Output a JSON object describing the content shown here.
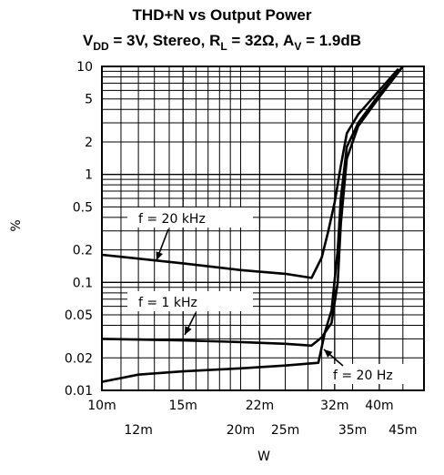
{
  "chart_data": {
    "type": "line",
    "title": "THD+N vs Output Power",
    "subtitle": {
      "vdd": "V",
      "vdd_sub": "DD",
      "vdd_rest": " = 3V, Stereo, R",
      "rl_sub": "L",
      "rl_rest": " = 32Ω, A",
      "av_sub": "V",
      "av_rest": " = 1.9dB"
    },
    "xlabel": "W",
    "ylabel": "%",
    "x_scale": "log",
    "y_scale": "log",
    "xlim": [
      0.01,
      0.05
    ],
    "ylim": [
      0.01,
      10
    ],
    "x_ticks_top": [
      {
        "value": 0.01,
        "label": "10m"
      },
      {
        "value": 0.015,
        "label": "15m"
      },
      {
        "value": 0.022,
        "label": "22m"
      },
      {
        "value": 0.032,
        "label": "32m"
      },
      {
        "value": 0.04,
        "label": "40m"
      }
    ],
    "x_ticks_bottom": [
      {
        "value": 0.012,
        "label": "12m"
      },
      {
        "value": 0.02,
        "label": "20m"
      },
      {
        "value": 0.025,
        "label": "25m"
      },
      {
        "value": 0.035,
        "label": "35m"
      },
      {
        "value": 0.045,
        "label": "45m"
      }
    ],
    "y_ticks": [
      {
        "value": 10,
        "label": "10"
      },
      {
        "value": 5,
        "label": "5"
      },
      {
        "value": 2,
        "label": "2"
      },
      {
        "value": 1,
        "label": "1"
      },
      {
        "value": 0.5,
        "label": "0.5"
      },
      {
        "value": 0.2,
        "label": "0.2"
      },
      {
        "value": 0.1,
        "label": "0.1"
      },
      {
        "value": 0.05,
        "label": "0.05"
      },
      {
        "value": 0.02,
        "label": "0.02"
      },
      {
        "value": 0.01,
        "label": "0.01"
      }
    ],
    "grid": true,
    "series": [
      {
        "name": "f = 20 kHz",
        "points": [
          [
            0.01,
            0.18
          ],
          [
            0.015,
            0.15
          ],
          [
            0.02,
            0.13
          ],
          [
            0.025,
            0.12
          ],
          [
            0.0285,
            0.11
          ],
          [
            0.03,
            0.17
          ],
          [
            0.031,
            0.3
          ],
          [
            0.032,
            0.55
          ],
          [
            0.033,
            1.2
          ],
          [
            0.034,
            2.4
          ],
          [
            0.036,
            3.6
          ],
          [
            0.04,
            6.0
          ],
          [
            0.044,
            9.5
          ]
        ]
      },
      {
        "name": "f = 1 kHz",
        "points": [
          [
            0.01,
            0.03
          ],
          [
            0.015,
            0.029
          ],
          [
            0.02,
            0.028
          ],
          [
            0.025,
            0.027
          ],
          [
            0.0285,
            0.026
          ],
          [
            0.03,
            0.031
          ],
          [
            0.0315,
            0.042
          ],
          [
            0.0325,
            0.1
          ],
          [
            0.033,
            0.35
          ],
          [
            0.034,
            1.4
          ],
          [
            0.036,
            2.8
          ],
          [
            0.04,
            5.2
          ],
          [
            0.045,
            10
          ]
        ]
      },
      {
        "name": "f = 20 Hz",
        "points": [
          [
            0.01,
            0.012
          ],
          [
            0.012,
            0.014
          ],
          [
            0.015,
            0.015
          ],
          [
            0.02,
            0.016
          ],
          [
            0.025,
            0.017
          ],
          [
            0.0295,
            0.018
          ],
          [
            0.0305,
            0.035
          ],
          [
            0.0315,
            0.055
          ],
          [
            0.0325,
            0.2
          ],
          [
            0.033,
            0.6
          ],
          [
            0.034,
            1.8
          ],
          [
            0.036,
            3.0
          ],
          [
            0.04,
            5.5
          ],
          [
            0.045,
            10
          ]
        ]
      }
    ],
    "annotations": [
      {
        "text": "f = 20 kHz",
        "series": "f = 20 kHz"
      },
      {
        "text": "f = 1 kHz",
        "series": "f = 1 kHz"
      },
      {
        "text": "f = 20 Hz",
        "series": "f = 20 Hz"
      }
    ]
  }
}
